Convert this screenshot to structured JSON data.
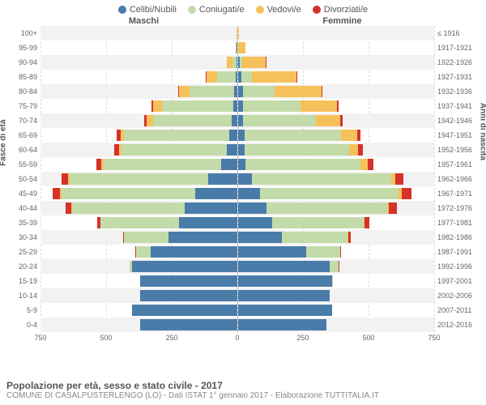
{
  "type": "population-pyramid",
  "colors": {
    "celibi": "#4a7ca9",
    "coniugati": "#c3dba9",
    "vedovi": "#f6c15a",
    "divorziati": "#d4322a",
    "background": "#ffffff",
    "alt_row": "#f2f2f2",
    "grid": "#dddddd",
    "text": "#555555",
    "center_line": "#bbbbbb"
  },
  "legend": [
    {
      "key": "celibi",
      "label": "Celibi/Nubili"
    },
    {
      "key": "coniugati",
      "label": "Coniugati/e"
    },
    {
      "key": "vedovi",
      "label": "Vedovi/e"
    },
    {
      "key": "divorziati",
      "label": "Divorziati/e"
    }
  ],
  "header_male": "Maschi",
  "header_female": "Femmine",
  "axis_left_title": "Fasce di età",
  "axis_right_title": "Anni di nascita",
  "max_value": 750,
  "x_ticks": [
    750,
    500,
    250,
    0,
    250,
    500,
    750
  ],
  "title": "Popolazione per età, sesso e stato civile - 2017",
  "subtitle": "COMUNE DI CASALPUSTERLENGO (LO) - Dati ISTAT 1° gennaio 2017 - Elaborazione TUTTITALIA.IT",
  "rows": [
    {
      "age": "100+",
      "birth": "≤ 1916",
      "m": {
        "c": 0,
        "co": 0,
        "v": 2,
        "d": 0
      },
      "f": {
        "c": 0,
        "co": 0,
        "v": 4,
        "d": 0
      }
    },
    {
      "age": "95-99",
      "birth": "1917-1921",
      "m": {
        "c": 1,
        "co": 2,
        "v": 3,
        "d": 0
      },
      "f": {
        "c": 2,
        "co": 1,
        "v": 25,
        "d": 0
      }
    },
    {
      "age": "90-94",
      "birth": "1922-1926",
      "m": {
        "c": 3,
        "co": 15,
        "v": 20,
        "d": 0
      },
      "f": {
        "c": 8,
        "co": 8,
        "v": 90,
        "d": 1
      }
    },
    {
      "age": "85-89",
      "birth": "1927-1931",
      "m": {
        "c": 6,
        "co": 70,
        "v": 40,
        "d": 2
      },
      "f": {
        "c": 15,
        "co": 40,
        "v": 170,
        "d": 2
      }
    },
    {
      "age": "80-84",
      "birth": "1932-1936",
      "m": {
        "c": 10,
        "co": 170,
        "v": 40,
        "d": 4
      },
      "f": {
        "c": 20,
        "co": 120,
        "v": 180,
        "d": 4
      }
    },
    {
      "age": "75-79",
      "birth": "1937-1941",
      "m": {
        "c": 15,
        "co": 270,
        "v": 35,
        "d": 6
      },
      "f": {
        "c": 20,
        "co": 220,
        "v": 140,
        "d": 6
      }
    },
    {
      "age": "70-74",
      "birth": "1942-1946",
      "m": {
        "c": 20,
        "co": 300,
        "v": 25,
        "d": 10
      },
      "f": {
        "c": 20,
        "co": 280,
        "v": 90,
        "d": 10
      }
    },
    {
      "age": "65-69",
      "birth": "1947-1951",
      "m": {
        "c": 30,
        "co": 400,
        "v": 15,
        "d": 15
      },
      "f": {
        "c": 25,
        "co": 370,
        "v": 60,
        "d": 15
      }
    },
    {
      "age": "60-64",
      "birth": "1952-1956",
      "m": {
        "c": 40,
        "co": 400,
        "v": 10,
        "d": 18
      },
      "f": {
        "c": 25,
        "co": 400,
        "v": 35,
        "d": 18
      }
    },
    {
      "age": "55-59",
      "birth": "1957-1961",
      "m": {
        "c": 60,
        "co": 450,
        "v": 8,
        "d": 20
      },
      "f": {
        "c": 30,
        "co": 440,
        "v": 25,
        "d": 22
      }
    },
    {
      "age": "50-54",
      "birth": "1962-1966",
      "m": {
        "c": 110,
        "co": 530,
        "v": 6,
        "d": 25
      },
      "f": {
        "c": 55,
        "co": 530,
        "v": 18,
        "d": 30
      }
    },
    {
      "age": "45-49",
      "birth": "1967-1971",
      "m": {
        "c": 160,
        "co": 510,
        "v": 5,
        "d": 28
      },
      "f": {
        "c": 85,
        "co": 530,
        "v": 12,
        "d": 35
      }
    },
    {
      "age": "40-44",
      "birth": "1972-1976",
      "m": {
        "c": 200,
        "co": 430,
        "v": 3,
        "d": 22
      },
      "f": {
        "c": 110,
        "co": 460,
        "v": 8,
        "d": 30
      }
    },
    {
      "age": "35-39",
      "birth": "1977-1981",
      "m": {
        "c": 220,
        "co": 300,
        "v": 1,
        "d": 12
      },
      "f": {
        "c": 130,
        "co": 350,
        "v": 4,
        "d": 18
      }
    },
    {
      "age": "30-34",
      "birth": "1982-1986",
      "m": {
        "c": 260,
        "co": 170,
        "v": 0,
        "d": 6
      },
      "f": {
        "c": 170,
        "co": 250,
        "v": 2,
        "d": 10
      }
    },
    {
      "age": "25-29",
      "birth": "1987-1991",
      "m": {
        "c": 330,
        "co": 55,
        "v": 0,
        "d": 2
      },
      "f": {
        "c": 260,
        "co": 130,
        "v": 0,
        "d": 4
      }
    },
    {
      "age": "20-24",
      "birth": "1992-1996",
      "m": {
        "c": 400,
        "co": 10,
        "v": 0,
        "d": 0
      },
      "f": {
        "c": 350,
        "co": 35,
        "v": 0,
        "d": 1
      }
    },
    {
      "age": "15-19",
      "birth": "1997-2001",
      "m": {
        "c": 370,
        "co": 0,
        "v": 0,
        "d": 0
      },
      "f": {
        "c": 360,
        "co": 2,
        "v": 0,
        "d": 0
      }
    },
    {
      "age": "10-14",
      "birth": "2002-2006",
      "m": {
        "c": 370,
        "co": 0,
        "v": 0,
        "d": 0
      },
      "f": {
        "c": 350,
        "co": 0,
        "v": 0,
        "d": 0
      }
    },
    {
      "age": "5-9",
      "birth": "2007-2011",
      "m": {
        "c": 400,
        "co": 0,
        "v": 0,
        "d": 0
      },
      "f": {
        "c": 360,
        "co": 0,
        "v": 0,
        "d": 0
      }
    },
    {
      "age": "0-4",
      "birth": "2012-2016",
      "m": {
        "c": 370,
        "co": 0,
        "v": 0,
        "d": 0
      },
      "f": {
        "c": 340,
        "co": 0,
        "v": 0,
        "d": 0
      }
    }
  ]
}
